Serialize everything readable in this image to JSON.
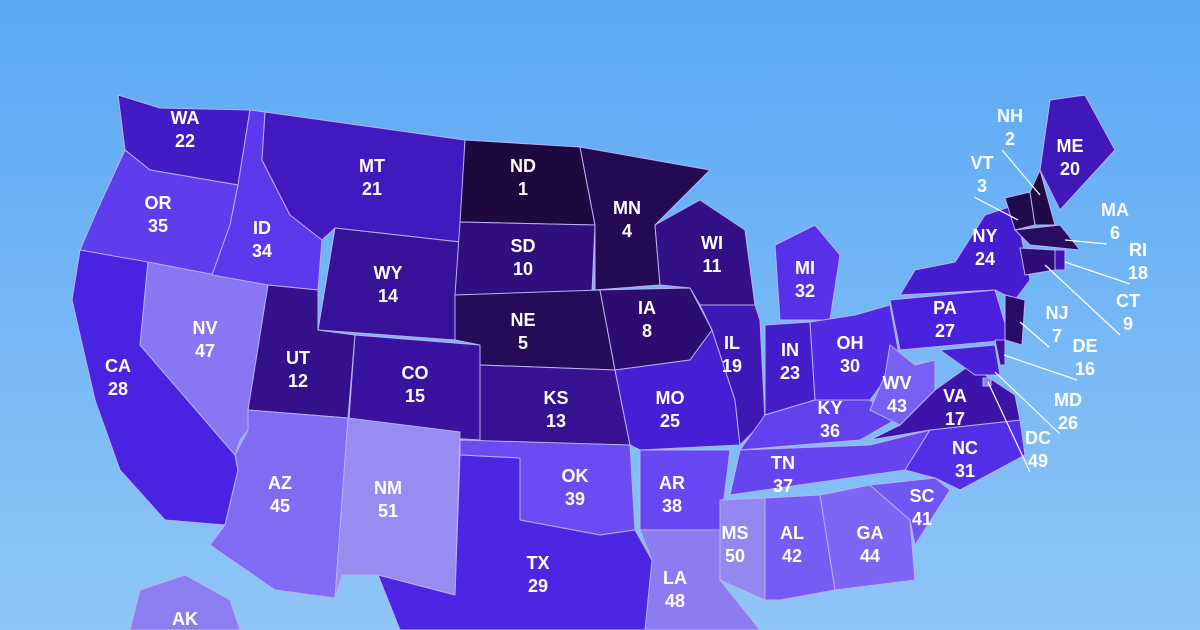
{
  "states": [
    {
      "abbr": "WA",
      "rank": 22
    },
    {
      "abbr": "OR",
      "rank": 35
    },
    {
      "abbr": "CA",
      "rank": 28
    },
    {
      "abbr": "NV",
      "rank": 47
    },
    {
      "abbr": "ID",
      "rank": 34
    },
    {
      "abbr": "MT",
      "rank": 21
    },
    {
      "abbr": "WY",
      "rank": 14
    },
    {
      "abbr": "UT",
      "rank": 12
    },
    {
      "abbr": "CO",
      "rank": 15
    },
    {
      "abbr": "AZ",
      "rank": 45
    },
    {
      "abbr": "NM",
      "rank": 51
    },
    {
      "abbr": "ND",
      "rank": 1
    },
    {
      "abbr": "SD",
      "rank": 10
    },
    {
      "abbr": "NE",
      "rank": 5
    },
    {
      "abbr": "KS",
      "rank": 13
    },
    {
      "abbr": "OK",
      "rank": 39
    },
    {
      "abbr": "TX",
      "rank": 29
    },
    {
      "abbr": "MN",
      "rank": 4
    },
    {
      "abbr": "IA",
      "rank": 8
    },
    {
      "abbr": "MO",
      "rank": 25
    },
    {
      "abbr": "AR",
      "rank": 38
    },
    {
      "abbr": "LA",
      "rank": 48
    },
    {
      "abbr": "WI",
      "rank": 11
    },
    {
      "abbr": "IL",
      "rank": 19
    },
    {
      "abbr": "MI",
      "rank": 32
    },
    {
      "abbr": "IN",
      "rank": 23
    },
    {
      "abbr": "OH",
      "rank": 30
    },
    {
      "abbr": "KY",
      "rank": 36
    },
    {
      "abbr": "TN",
      "rank": 37
    },
    {
      "abbr": "MS",
      "rank": 50
    },
    {
      "abbr": "AL",
      "rank": 42
    },
    {
      "abbr": "GA",
      "rank": 44
    },
    {
      "abbr": "SC",
      "rank": 41
    },
    {
      "abbr": "NC",
      "rank": 31
    },
    {
      "abbr": "VA",
      "rank": 17
    },
    {
      "abbr": "WV",
      "rank": 43
    },
    {
      "abbr": "PA",
      "rank": 27
    },
    {
      "abbr": "NY",
      "rank": 24
    },
    {
      "abbr": "VT",
      "rank": 3
    },
    {
      "abbr": "NH",
      "rank": 2
    },
    {
      "abbr": "ME",
      "rank": 20
    },
    {
      "abbr": "MA",
      "rank": 6
    },
    {
      "abbr": "RI",
      "rank": 18
    },
    {
      "abbr": "CT",
      "rank": 9
    },
    {
      "abbr": "NJ",
      "rank": 7
    },
    {
      "abbr": "DE",
      "rank": 16
    },
    {
      "abbr": "MD",
      "rank": 26
    },
    {
      "abbr": "DC",
      "rank": 49
    },
    {
      "abbr": "AK"
    }
  ]
}
